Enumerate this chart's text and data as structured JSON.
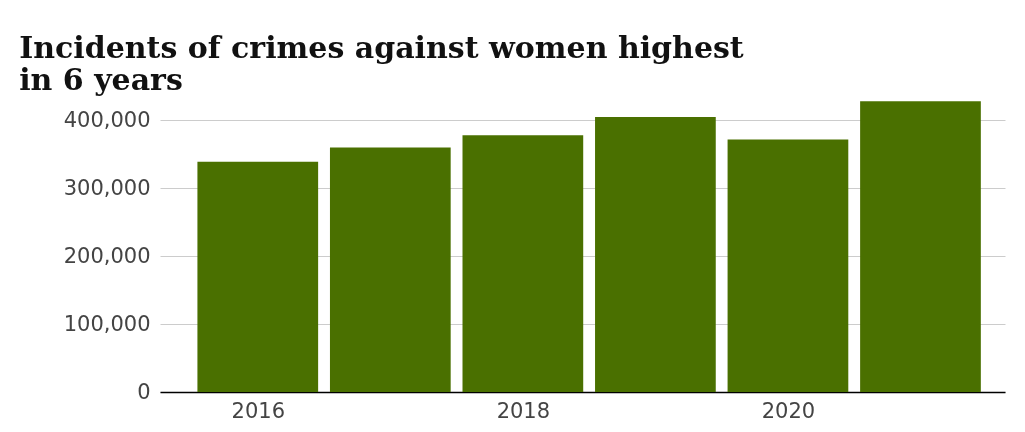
{
  "chart_data": {
    "type": "bar",
    "title": "Incidents of crimes against women highest in 6 years",
    "x": [
      2016,
      2017,
      2018,
      2019,
      2020,
      2021
    ],
    "values": [
      339000,
      360000,
      378000,
      405000,
      372000,
      428000
    ],
    "color": "#4a7000",
    "xlim": [
      2015.3,
      2021.6
    ],
    "xticks": [
      2016,
      2018,
      2020
    ],
    "ylim": [
      0,
      430000
    ],
    "yticks": [
      0,
      {
        "value": 100000,
        "label": "100,000"
      },
      {
        "value": 200000,
        "label": "200,000"
      },
      {
        "value": 300000,
        "label": "300,000"
      },
      {
        "value": 400000,
        "label": "400,000"
      }
    ],
    "grid": "y"
  }
}
